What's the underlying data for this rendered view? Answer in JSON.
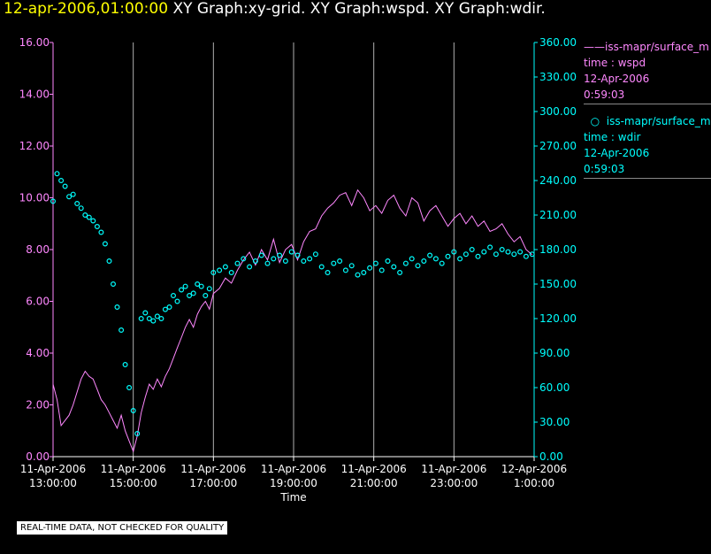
{
  "header": {
    "datetime": "12-apr-2006,01:00:00",
    "graphs": "XY Graph:xy-grid.  XY Graph:wspd.  XY Graph:wdir."
  },
  "legend": [
    {
      "marker": "line",
      "name": "iss-mapr/surface_m",
      "var": "time : wspd",
      "date": "12-Apr-2006",
      "time": "0:59:03",
      "color": "#ff88ff"
    },
    {
      "marker": "circle",
      "name": "iss-mapr/surface_m",
      "var": "time : wdir",
      "date": "12-Apr-2006",
      "time": "0:59:03",
      "color": "#00ffff"
    }
  ],
  "disclaimer": "REAL-TIME DATA, NOT CHECKED FOR QUALITY",
  "chart_data": {
    "type": "line",
    "title": "XY Graph:wspd / XY Graph:wdir",
    "xlabel": "Time",
    "x_hours_range": [
      13.0,
      25.0
    ],
    "x_ticks": [
      {
        "hour": 13,
        "date": "11-Apr-2006",
        "time": "13:00:00"
      },
      {
        "hour": 15,
        "date": "11-Apr-2006",
        "time": "15:00:00"
      },
      {
        "hour": 17,
        "date": "11-Apr-2006",
        "time": "17:00:00"
      },
      {
        "hour": 19,
        "date": "11-Apr-2006",
        "time": "19:00:00"
      },
      {
        "hour": 21,
        "date": "11-Apr-2006",
        "time": "21:00:00"
      },
      {
        "hour": 23,
        "date": "11-Apr-2006",
        "time": "23:00:00"
      },
      {
        "hour": 25,
        "date": "12-Apr-2006",
        "time": "1:00:00"
      }
    ],
    "left_axis": {
      "ylim": [
        0,
        16
      ],
      "ticks": [
        "0.00",
        "2.00",
        "4.00",
        "6.00",
        "8.00",
        "10.00",
        "12.00",
        "14.00",
        "16.00"
      ]
    },
    "right_axis": {
      "ylim": [
        0,
        360
      ],
      "ticks": [
        "0.00",
        "30.00",
        "60.00",
        "90.00",
        "120.00",
        "150.00",
        "180.00",
        "210.00",
        "240.00",
        "270.00",
        "300.00",
        "330.00",
        "360.00"
      ]
    },
    "grid": "vertical",
    "series": [
      {
        "name": "wspd",
        "style": "line",
        "axis": "left",
        "color": "#ff88ff",
        "points": [
          [
            13.0,
            2.8
          ],
          [
            13.1,
            2.2
          ],
          [
            13.2,
            1.2
          ],
          [
            13.3,
            1.4
          ],
          [
            13.4,
            1.6
          ],
          [
            13.5,
            2.0
          ],
          [
            13.6,
            2.5
          ],
          [
            13.7,
            3.0
          ],
          [
            13.8,
            3.3
          ],
          [
            13.9,
            3.1
          ],
          [
            14.0,
            3.0
          ],
          [
            14.1,
            2.6
          ],
          [
            14.2,
            2.2
          ],
          [
            14.3,
            2.0
          ],
          [
            14.4,
            1.7
          ],
          [
            14.5,
            1.4
          ],
          [
            14.6,
            1.1
          ],
          [
            14.7,
            1.6
          ],
          [
            14.8,
            1.0
          ],
          [
            14.9,
            0.6
          ],
          [
            15.0,
            0.2
          ],
          [
            15.1,
            0.8
          ],
          [
            15.2,
            1.7
          ],
          [
            15.3,
            2.3
          ],
          [
            15.4,
            2.8
          ],
          [
            15.5,
            2.6
          ],
          [
            15.6,
            3.0
          ],
          [
            15.7,
            2.7
          ],
          [
            15.8,
            3.1
          ],
          [
            15.9,
            3.4
          ],
          [
            16.0,
            3.8
          ],
          [
            16.1,
            4.2
          ],
          [
            16.2,
            4.6
          ],
          [
            16.3,
            5.0
          ],
          [
            16.4,
            5.3
          ],
          [
            16.5,
            5.0
          ],
          [
            16.6,
            5.5
          ],
          [
            16.7,
            5.8
          ],
          [
            16.8,
            6.0
          ],
          [
            16.9,
            5.7
          ],
          [
            17.0,
            6.3
          ],
          [
            17.15,
            6.5
          ],
          [
            17.3,
            6.9
          ],
          [
            17.45,
            6.7
          ],
          [
            17.6,
            7.2
          ],
          [
            17.75,
            7.6
          ],
          [
            17.9,
            7.9
          ],
          [
            18.05,
            7.4
          ],
          [
            18.2,
            8.0
          ],
          [
            18.35,
            7.6
          ],
          [
            18.5,
            8.4
          ],
          [
            18.65,
            7.5
          ],
          [
            18.8,
            8.0
          ],
          [
            18.95,
            8.2
          ],
          [
            19.1,
            7.6
          ],
          [
            19.25,
            8.3
          ],
          [
            19.4,
            8.7
          ],
          [
            19.55,
            8.8
          ],
          [
            19.7,
            9.3
          ],
          [
            19.85,
            9.6
          ],
          [
            20.0,
            9.8
          ],
          [
            20.15,
            10.1
          ],
          [
            20.3,
            10.2
          ],
          [
            20.45,
            9.7
          ],
          [
            20.6,
            10.3
          ],
          [
            20.75,
            10.0
          ],
          [
            20.9,
            9.5
          ],
          [
            21.05,
            9.7
          ],
          [
            21.2,
            9.4
          ],
          [
            21.35,
            9.9
          ],
          [
            21.5,
            10.1
          ],
          [
            21.65,
            9.6
          ],
          [
            21.8,
            9.3
          ],
          [
            21.95,
            10.0
          ],
          [
            22.1,
            9.8
          ],
          [
            22.25,
            9.1
          ],
          [
            22.4,
            9.5
          ],
          [
            22.55,
            9.7
          ],
          [
            22.7,
            9.3
          ],
          [
            22.85,
            8.9
          ],
          [
            23.0,
            9.2
          ],
          [
            23.15,
            9.4
          ],
          [
            23.3,
            9.0
          ],
          [
            23.45,
            9.3
          ],
          [
            23.6,
            8.9
          ],
          [
            23.75,
            9.1
          ],
          [
            23.9,
            8.7
          ],
          [
            24.05,
            8.8
          ],
          [
            24.2,
            9.0
          ],
          [
            24.35,
            8.6
          ],
          [
            24.5,
            8.3
          ],
          [
            24.65,
            8.5
          ],
          [
            24.8,
            8.0
          ],
          [
            24.95,
            7.8
          ]
        ]
      },
      {
        "name": "wdir",
        "style": "circle",
        "axis": "right",
        "color": "#00ffff",
        "points": [
          [
            13.0,
            222
          ],
          [
            13.1,
            246
          ],
          [
            13.2,
            240
          ],
          [
            13.3,
            235
          ],
          [
            13.4,
            226
          ],
          [
            13.5,
            228
          ],
          [
            13.6,
            220
          ],
          [
            13.7,
            216
          ],
          [
            13.8,
            210
          ],
          [
            13.9,
            208
          ],
          [
            14.0,
            205
          ],
          [
            14.1,
            200
          ],
          [
            14.2,
            195
          ],
          [
            14.3,
            185
          ],
          [
            14.4,
            170
          ],
          [
            14.5,
            150
          ],
          [
            14.6,
            130
          ],
          [
            14.7,
            110
          ],
          [
            14.8,
            80
          ],
          [
            14.9,
            60
          ],
          [
            15.0,
            40
          ],
          [
            15.1,
            20
          ],
          [
            15.2,
            120
          ],
          [
            15.3,
            125
          ],
          [
            15.4,
            120
          ],
          [
            15.5,
            118
          ],
          [
            15.6,
            122
          ],
          [
            15.7,
            120
          ],
          [
            15.8,
            128
          ],
          [
            15.9,
            130
          ],
          [
            16.0,
            140
          ],
          [
            16.1,
            135
          ],
          [
            16.2,
            145
          ],
          [
            16.3,
            148
          ],
          [
            16.4,
            140
          ],
          [
            16.5,
            142
          ],
          [
            16.6,
            150
          ],
          [
            16.7,
            148
          ],
          [
            16.8,
            140
          ],
          [
            16.9,
            146
          ],
          [
            17.0,
            160
          ],
          [
            17.15,
            162
          ],
          [
            17.3,
            165
          ],
          [
            17.45,
            160
          ],
          [
            17.6,
            168
          ],
          [
            17.75,
            172
          ],
          [
            17.9,
            165
          ],
          [
            18.05,
            170
          ],
          [
            18.2,
            175
          ],
          [
            18.35,
            168
          ],
          [
            18.5,
            172
          ],
          [
            18.65,
            175
          ],
          [
            18.8,
            170
          ],
          [
            18.95,
            178
          ],
          [
            19.1,
            175
          ],
          [
            19.25,
            170
          ],
          [
            19.4,
            172
          ],
          [
            19.55,
            176
          ],
          [
            19.7,
            165
          ],
          [
            19.85,
            160
          ],
          [
            20.0,
            168
          ],
          [
            20.15,
            170
          ],
          [
            20.3,
            162
          ],
          [
            20.45,
            166
          ],
          [
            20.6,
            158
          ],
          [
            20.75,
            160
          ],
          [
            20.9,
            164
          ],
          [
            21.05,
            168
          ],
          [
            21.2,
            162
          ],
          [
            21.35,
            170
          ],
          [
            21.5,
            165
          ],
          [
            21.65,
            160
          ],
          [
            21.8,
            168
          ],
          [
            21.95,
            172
          ],
          [
            22.1,
            166
          ],
          [
            22.25,
            170
          ],
          [
            22.4,
            175
          ],
          [
            22.55,
            172
          ],
          [
            22.7,
            168
          ],
          [
            22.85,
            174
          ],
          [
            23.0,
            178
          ],
          [
            23.15,
            172
          ],
          [
            23.3,
            176
          ],
          [
            23.45,
            180
          ],
          [
            23.6,
            174
          ],
          [
            23.75,
            178
          ],
          [
            23.9,
            182
          ],
          [
            24.05,
            176
          ],
          [
            24.2,
            180
          ],
          [
            24.35,
            178
          ],
          [
            24.5,
            176
          ],
          [
            24.65,
            178
          ],
          [
            24.8,
            174
          ],
          [
            24.95,
            176
          ]
        ]
      }
    ]
  }
}
